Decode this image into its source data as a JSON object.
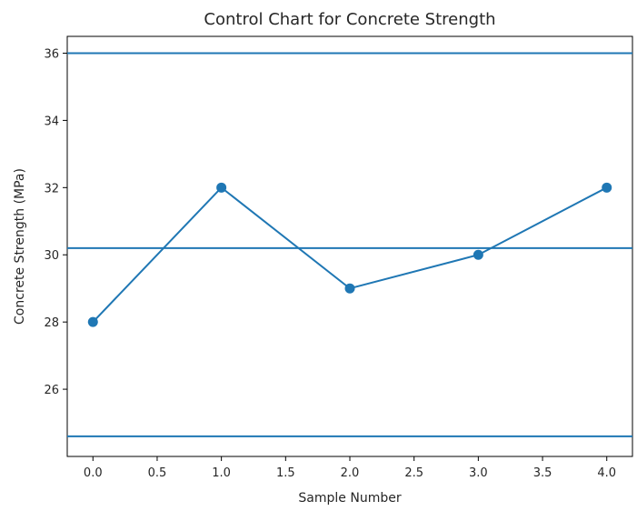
{
  "chart_data": {
    "type": "line",
    "title": "Control Chart for Concrete Strength",
    "xlabel": "Sample Number",
    "ylabel": "Concrete Strength (MPa)",
    "xlim": [
      -0.2,
      4.2
    ],
    "ylim": [
      24.0,
      36.5
    ],
    "x_ticks": [
      0.0,
      0.5,
      1.0,
      1.5,
      2.0,
      2.5,
      3.0,
      3.5,
      4.0
    ],
    "x_tick_labels": [
      "0.0",
      "0.5",
      "1.0",
      "1.5",
      "2.0",
      "2.5",
      "3.0",
      "3.5",
      "4.0"
    ],
    "y_ticks": [
      26,
      28,
      30,
      32,
      34,
      36
    ],
    "y_tick_labels": [
      "26",
      "28",
      "30",
      "32",
      "34",
      "36"
    ],
    "grid": false,
    "series": [
      {
        "x": [
          0,
          1,
          2,
          3,
          4
        ],
        "values": [
          28,
          32,
          29,
          30,
          32
        ],
        "marker": "circle",
        "color": "#1f77b4"
      }
    ],
    "horizontal_lines": [
      {
        "y": 36.0,
        "color": "#1f77b4"
      },
      {
        "y": 30.2,
        "color": "#1f77b4"
      },
      {
        "y": 24.6,
        "color": "#1f77b4"
      }
    ]
  }
}
